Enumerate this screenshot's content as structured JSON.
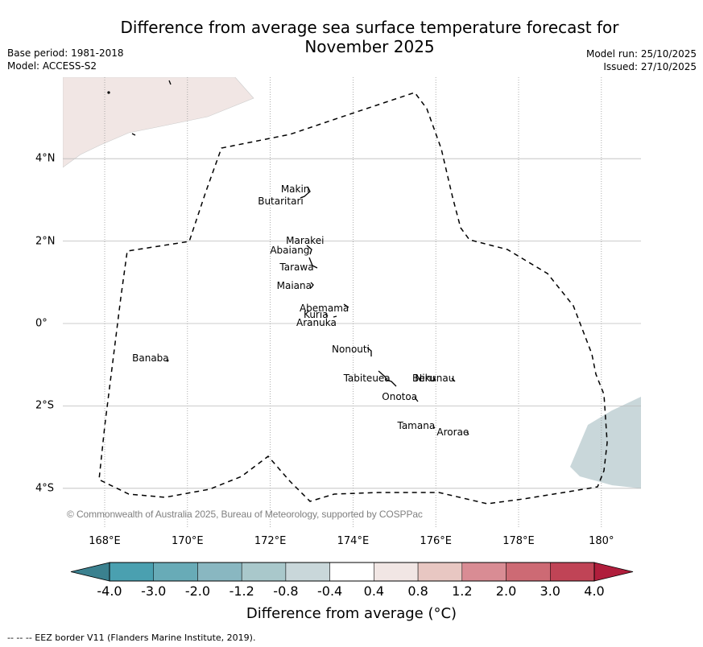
{
  "header": {
    "title_line1": "Difference from average sea surface temperature forecast for",
    "title_line2": "November 2025",
    "base_period": "Base period: 1981-2018",
    "model": "Model: ACCESS-S2",
    "model_run": "Model run: 25/10/2025",
    "issued": "Issued: 27/10/2025"
  },
  "map": {
    "lon_range": [
      167,
      181
    ],
    "lat_range": [
      -5,
      6
    ],
    "x_ticks": [
      "168°E",
      "170°E",
      "172°E",
      "174°E",
      "176°E",
      "178°E",
      "180°"
    ],
    "x_tick_values": [
      168,
      170,
      172,
      174,
      176,
      178,
      180
    ],
    "y_ticks": [
      "4°N",
      "2°N",
      "0°",
      "2°S",
      "4°S"
    ],
    "y_tick_values": [
      4,
      2,
      0,
      -2,
      -4
    ],
    "copyright": "© Commonwealth of Australia 2025, Bureau of Meteorology, supported by COSPPac",
    "places": [
      {
        "name": "Makin",
        "lon": 172.95,
        "lat": 3.25
      },
      {
        "name": "Butaritari",
        "lon": 172.8,
        "lat": 2.95
      },
      {
        "name": "Marakei",
        "lon": 173.3,
        "lat": 2.0
      },
      {
        "name": "Abaiang",
        "lon": 172.95,
        "lat": 1.75
      },
      {
        "name": "Tarawa",
        "lon": 173.05,
        "lat": 1.35
      },
      {
        "name": "Maiana",
        "lon": 173.0,
        "lat": 0.9
      },
      {
        "name": "Abemama",
        "lon": 173.9,
        "lat": 0.35
      },
      {
        "name": "Kuria",
        "lon": 173.4,
        "lat": 0.2
      },
      {
        "name": "Aranuka",
        "lon": 173.6,
        "lat": 0.0
      },
      {
        "name": "Banaba",
        "lon": 169.55,
        "lat": -0.85
      },
      {
        "name": "Nonouti",
        "lon": 174.4,
        "lat": -0.65
      },
      {
        "name": "Tabiteuea",
        "lon": 174.9,
        "lat": -1.35
      },
      {
        "name": "Beru",
        "lon": 175.98,
        "lat": -1.35
      },
      {
        "name": "Nikunau",
        "lon": 176.45,
        "lat": -1.35
      },
      {
        "name": "Onotoa",
        "lon": 175.55,
        "lat": -1.8
      },
      {
        "name": "Tamana",
        "lon": 175.98,
        "lat": -2.5
      },
      {
        "name": "Arorae",
        "lon": 176.8,
        "lat": -2.65
      }
    ],
    "anomaly_regions": [
      {
        "name": "positive-anomaly-0.4-0.8",
        "color": "#f1e6e4"
      },
      {
        "name": "negative-anomaly-0.8-0.4",
        "color": "#c9d7da"
      }
    ]
  },
  "colorbar": {
    "ticks": [
      "-4.0",
      "-3.0",
      "-2.0",
      "-1.2",
      "-0.8",
      "-0.4",
      "0.4",
      "0.8",
      "1.2",
      "2.0",
      "3.0",
      "4.0"
    ],
    "colors": [
      "#4aa0b0",
      "#68abb7",
      "#89b7c1",
      "#a9c8cb",
      "#c9d7da",
      "#ffffff",
      "#f1e6e4",
      "#e8c7c2",
      "#d98c94",
      "#cd6a74",
      "#c04456"
    ],
    "under_color": "#3b818f",
    "over_color": "#b01e3c",
    "label": "Difference from average (°C)"
  },
  "footer": {
    "legend_text": "--  --  -- EEZ border V11 (Flanders Marine Institute, 2019)."
  }
}
